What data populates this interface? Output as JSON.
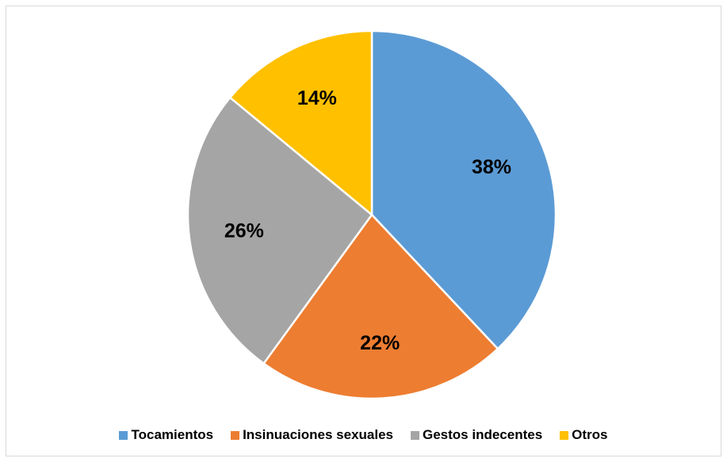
{
  "chart_data": {
    "type": "pie",
    "title": "",
    "categories": [
      "Tocamientos",
      "Insinuaciones sexuales",
      "Gestos indecentes",
      "Otros"
    ],
    "values": [
      38,
      22,
      26,
      14
    ],
    "data_labels": [
      "38%",
      "22%",
      "26%",
      "14%"
    ],
    "colors": [
      "#5b9bd5",
      "#ed7d31",
      "#a5a5a5",
      "#ffc000"
    ],
    "legend_position": "bottom",
    "start_angle": "12 o'clock, clockwise"
  },
  "legend": {
    "items": [
      {
        "label": "Tocamientos",
        "color": "#5b9bd5"
      },
      {
        "label": "Insinuaciones sexuales",
        "color": "#ed7d31"
      },
      {
        "label": "Gestos indecentes",
        "color": "#a5a5a5"
      },
      {
        "label": "Otros",
        "color": "#ffc000"
      }
    ]
  }
}
